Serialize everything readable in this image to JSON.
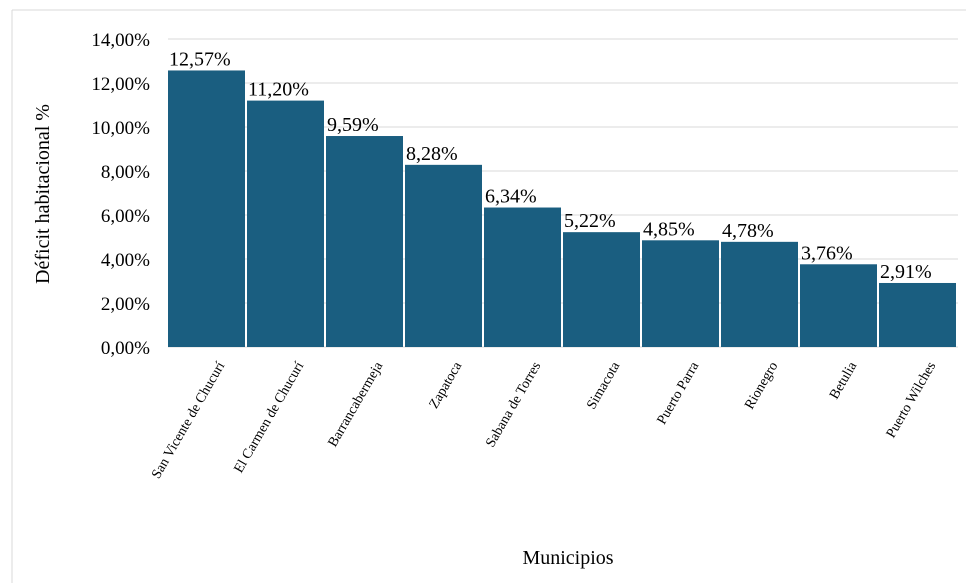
{
  "chart_data": {
    "type": "bar",
    "title": "",
    "xlabel": "Municipios",
    "ylabel": "Déficit habitacional %",
    "ylim": [
      0,
      14
    ],
    "y_ticks": [
      0,
      2,
      4,
      6,
      8,
      10,
      12,
      14
    ],
    "y_tick_labels": [
      "0,00%",
      "2,00%",
      "4,00%",
      "6,00%",
      "8,00%",
      "10,00%",
      "12,00%",
      "14,00%"
    ],
    "grid": true,
    "legend": "none",
    "bar_color": "#1a5e80",
    "categories": [
      "San Vicente de Chucurí",
      "El Carmen de Chucurí",
      "Barrancabermeja",
      "Zapatoca",
      "Sabana de Torres",
      "Simacota",
      "Puerto Parra",
      "Rionegro",
      "Betulia",
      "Puerto Wilches"
    ],
    "values": [
      12.57,
      11.2,
      9.59,
      8.28,
      6.34,
      5.22,
      4.85,
      4.78,
      3.76,
      2.91
    ],
    "value_labels": [
      "12,57%",
      "11,20%",
      "9,59%",
      "8,28%",
      "6,34%",
      "5,22%",
      "4,85%",
      "4,78%",
      "3,76%",
      "2,91%"
    ]
  }
}
